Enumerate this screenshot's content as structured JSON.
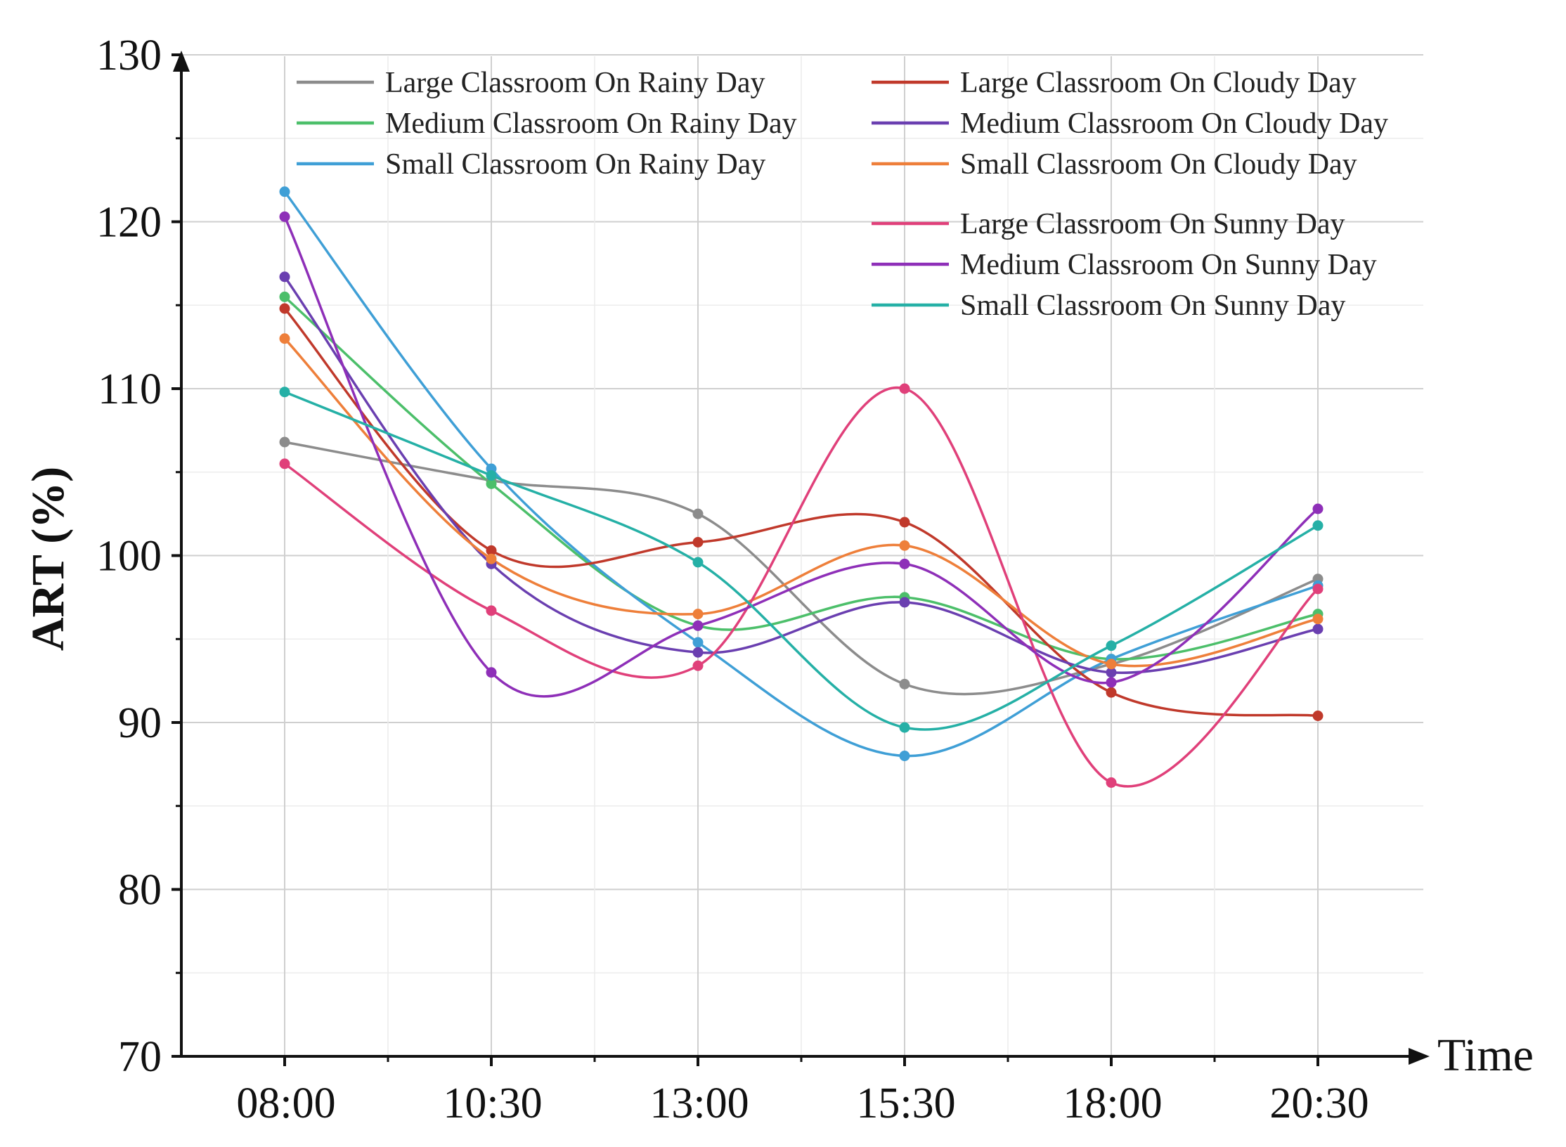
{
  "chart_data": {
    "type": "line",
    "title": "",
    "xlabel": "Time",
    "ylabel": "ART (%)",
    "ylim": [
      70,
      130
    ],
    "yticks": [
      70,
      80,
      90,
      100,
      110,
      120,
      130
    ],
    "categories": [
      "08:00",
      "10:30",
      "13:00",
      "15:30",
      "18:00",
      "20:30"
    ],
    "grid": true,
    "legend_position": "top",
    "series": [
      {
        "name": "Large Classroom On Rainy Day",
        "color": "#8c8c8c",
        "values": [
          106.8,
          104.5,
          102.5,
          92.3,
          93.5,
          98.6
        ]
      },
      {
        "name": "Medium Classroom On Rainy Day",
        "color": "#4cbf6a",
        "values": [
          115.5,
          104.3,
          95.8,
          97.5,
          93.8,
          96.5
        ]
      },
      {
        "name": "Small Classroom On Rainy Day",
        "color": "#3f9fd6",
        "values": [
          121.8,
          105.2,
          94.8,
          88.0,
          93.8,
          98.2
        ]
      },
      {
        "name": "Large Classroom On Cloudy Day",
        "color": "#c0392b",
        "values": [
          114.8,
          100.3,
          100.8,
          102.0,
          91.8,
          90.4
        ]
      },
      {
        "name": "Medium Classroom On Cloudy Day",
        "color": "#6a3fb0",
        "values": [
          116.7,
          99.5,
          94.2,
          97.2,
          93.0,
          95.6
        ]
      },
      {
        "name": "Small Classroom On Cloudy Day",
        "color": "#ee7f3a",
        "values": [
          113.0,
          99.8,
          96.5,
          100.6,
          93.5,
          96.2
        ]
      },
      {
        "name": "Large Classroom On Sunny Day",
        "color": "#e0407a",
        "values": [
          105.5,
          96.7,
          93.4,
          110.0,
          86.4,
          98.0
        ]
      },
      {
        "name": "Medium Classroom On Sunny Day",
        "color": "#8e2fb8",
        "values": [
          120.3,
          93.0,
          95.8,
          99.5,
          92.4,
          102.8
        ]
      },
      {
        "name": "Small Classroom On Sunny Day",
        "color": "#25b0a6",
        "values": [
          109.8,
          104.8,
          99.6,
          89.7,
          94.6,
          101.8
        ]
      }
    ]
  }
}
